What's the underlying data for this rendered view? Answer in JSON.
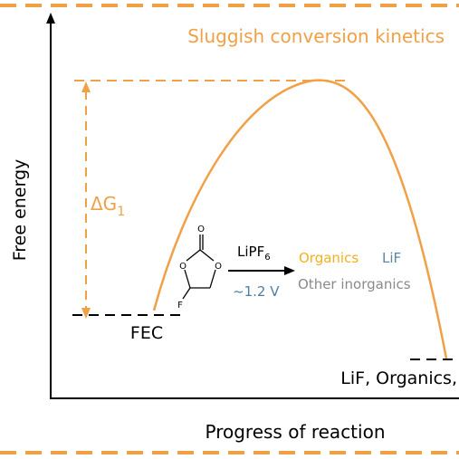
{
  "title": "Sluggish conversion kinetics",
  "axes": {
    "y_label": "Free energy",
    "x_label": "Progress of reaction"
  },
  "energy_barrier": {
    "label_delta": "ΔG",
    "label_sub": "1"
  },
  "reactant": {
    "label": "FEC"
  },
  "molecule": {
    "oxygen_top": "O",
    "oxygen_left": "O",
    "oxygen_right": "O",
    "fluorine": "F"
  },
  "reaction": {
    "reagent_main": "LiPF",
    "reagent_sub": "6",
    "potential": "~1.2 V"
  },
  "products": {
    "organics": "Organics",
    "lif": "LiF",
    "other_inorganics": "Other inorganics",
    "final": "LiF, Organics,"
  },
  "colors": {
    "accent_orange": "#f0a046",
    "lif_blue": "#5b86a6",
    "organics_gold": "#f2b01c",
    "other_gray": "#8a8a8a",
    "potential_blue": "#4f7ea3"
  }
}
